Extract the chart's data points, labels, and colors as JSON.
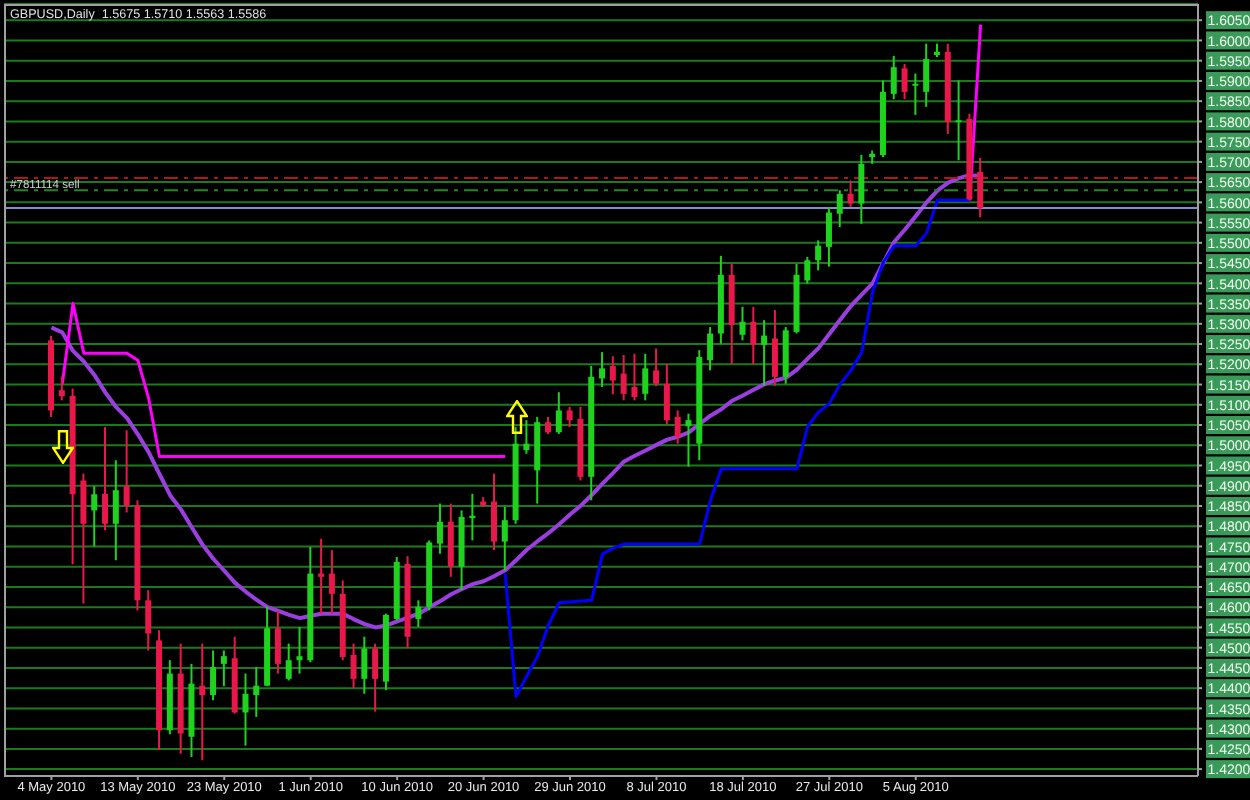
{
  "chart_data": {
    "type": "candlestick",
    "title": "GBPUSD,Daily  1.5675 1.5710 1.5563 1.5586",
    "categories": [
      "4 May 2010",
      null,
      null,
      null,
      null,
      null,
      null,
      null,
      "13 May 2010",
      null,
      null,
      null,
      null,
      null,
      null,
      null,
      "23 May 2010",
      null,
      null,
      null,
      null,
      null,
      null,
      null,
      "1 Jun 2010",
      null,
      null,
      null,
      null,
      null,
      null,
      null,
      "10 Jun 2010",
      null,
      null,
      null,
      null,
      null,
      null,
      null,
      "20 Jun 2010",
      null,
      null,
      null,
      null,
      null,
      null,
      null,
      "29 Jun 2010",
      null,
      null,
      null,
      null,
      null,
      null,
      null,
      "8 Jul 2010",
      null,
      null,
      null,
      null,
      null,
      null,
      null,
      "18 Jul 2010",
      null,
      null,
      null,
      null,
      null,
      null,
      null,
      "27 Jul 2010",
      null,
      null,
      null,
      null,
      null,
      null,
      null,
      "5 Aug 2010",
      null,
      null,
      null,
      null,
      null,
      null
    ],
    "ohlc": [
      [
        1.5259,
        1.527,
        1.507,
        1.5086
      ],
      [
        1.5136,
        1.517,
        1.5111,
        1.5121
      ],
      [
        1.5122,
        1.514,
        1.4706,
        1.4879
      ],
      [
        1.4913,
        1.493,
        1.4609,
        1.4806
      ],
      [
        1.4839,
        1.4899,
        1.475,
        1.4879
      ],
      [
        1.488,
        1.5045,
        1.479,
        1.4806
      ],
      [
        1.4806,
        1.4963,
        1.4716,
        1.4889
      ],
      [
        1.4899,
        1.5037,
        1.4834,
        1.4851
      ],
      [
        1.4851,
        1.4864,
        1.4592,
        1.4617
      ],
      [
        1.4617,
        1.4642,
        1.4493,
        1.4535
      ],
      [
        1.4518,
        1.4543,
        1.4247,
        1.4296
      ],
      [
        1.4296,
        1.4469,
        1.4286,
        1.4436
      ],
      [
        1.4436,
        1.451,
        1.4238,
        1.4288
      ],
      [
        1.428,
        1.446,
        1.423,
        1.4411
      ],
      [
        1.4406,
        1.451,
        1.4222,
        1.4383
      ],
      [
        1.4383,
        1.4493,
        1.437,
        1.4452
      ],
      [
        1.446,
        1.4493,
        1.4405,
        1.4479
      ],
      [
        1.4474,
        1.4527,
        1.4337,
        1.434
      ],
      [
        1.434,
        1.4436,
        1.4258,
        1.4386
      ],
      [
        1.4383,
        1.4452,
        1.4329,
        1.4406
      ],
      [
        1.4406,
        1.4602,
        1.4405,
        1.4548
      ],
      [
        1.4548,
        1.4592,
        1.4436,
        1.446
      ],
      [
        1.4423,
        1.451,
        1.4419,
        1.4469
      ],
      [
        1.4469,
        1.4551,
        1.4436,
        1.4479
      ],
      [
        1.4469,
        1.4749,
        1.4464,
        1.4683
      ],
      [
        1.4683,
        1.4769,
        1.4584,
        1.4675
      ],
      [
        1.4683,
        1.4741,
        1.4584,
        1.4633
      ],
      [
        1.4633,
        1.4666,
        1.4469,
        1.4477
      ],
      [
        1.4482,
        1.451,
        1.44,
        1.4423
      ],
      [
        1.4423,
        1.4527,
        1.4386,
        1.4498
      ],
      [
        1.4498,
        1.451,
        1.4342,
        1.4423
      ],
      [
        1.4416,
        1.4584,
        1.4395,
        1.4581
      ],
      [
        1.4571,
        1.4724,
        1.4568,
        1.4712
      ],
      [
        1.4707,
        1.4726,
        1.4498,
        1.4527
      ],
      [
        1.4571,
        1.4617,
        1.4551,
        1.4601
      ],
      [
        1.4601,
        1.4765,
        1.4592,
        1.476
      ],
      [
        1.4757,
        1.4856,
        1.4732,
        1.4811
      ],
      [
        1.4811,
        1.4856,
        1.4675,
        1.47
      ],
      [
        1.47,
        1.4839,
        1.4642,
        1.4823
      ],
      [
        1.482,
        1.488,
        1.4765,
        1.4826
      ],
      [
        1.4861,
        1.4872,
        1.4848,
        1.4851
      ],
      [
        1.4861,
        1.493,
        1.4741,
        1.4762
      ],
      [
        1.4762,
        1.4848,
        1.4691,
        1.4815
      ],
      [
        1.4815,
        1.5045,
        1.4806,
        1.5004
      ],
      [
        1.4988,
        1.5062,
        1.4979,
        1.5004
      ],
      [
        1.4938,
        1.507,
        1.4856,
        1.5057
      ],
      [
        1.5057,
        1.507,
        1.5028,
        1.5032
      ],
      [
        1.5032,
        1.5131,
        1.5028,
        1.5086
      ],
      [
        1.5086,
        1.5095,
        1.5045,
        1.5062
      ],
      [
        1.5065,
        1.5095,
        1.4913,
        1.4922
      ],
      [
        1.4922,
        1.5196,
        1.4864,
        1.5169
      ],
      [
        1.5165,
        1.523,
        1.5144,
        1.519
      ],
      [
        1.5196,
        1.522,
        1.5126,
        1.516
      ],
      [
        1.5177,
        1.5223,
        1.5111,
        1.5127
      ],
      [
        1.5144,
        1.5226,
        1.5111,
        1.5119
      ],
      [
        1.5127,
        1.5226,
        1.5111,
        1.519
      ],
      [
        1.5185,
        1.5239,
        1.5146,
        1.5152
      ],
      [
        1.5152,
        1.5201,
        1.5052,
        1.5062
      ],
      [
        1.507,
        1.5086,
        1.5004,
        1.5021
      ],
      [
        1.5047,
        1.5078,
        1.4947,
        1.5062
      ],
      [
        1.5004,
        1.5235,
        1.4963,
        1.5218
      ],
      [
        1.521,
        1.5292,
        1.5185,
        1.5276
      ],
      [
        1.5276,
        1.5468,
        1.5251,
        1.5421
      ],
      [
        1.5421,
        1.5448,
        1.5201,
        1.5297
      ],
      [
        1.5273,
        1.5342,
        1.5259,
        1.5305
      ],
      [
        1.5305,
        1.5342,
        1.5201,
        1.5248
      ],
      [
        1.5248,
        1.5309,
        1.5147,
        1.5271
      ],
      [
        1.5264,
        1.5334,
        1.5147,
        1.5169
      ],
      [
        1.5169,
        1.5292,
        1.5152,
        1.5284
      ],
      [
        1.528,
        1.5448,
        1.5276,
        1.5421
      ],
      [
        1.5407,
        1.5465,
        1.5399,
        1.5457
      ],
      [
        1.5457,
        1.5506,
        1.5432,
        1.5493
      ],
      [
        1.549,
        1.5589,
        1.5441,
        1.5575
      ],
      [
        1.5572,
        1.563,
        1.5539,
        1.5621
      ],
      [
        1.5621,
        1.5654,
        1.5589,
        1.5597
      ],
      [
        1.5597,
        1.5717,
        1.5547,
        1.5695
      ],
      [
        1.5712,
        1.5728,
        1.5695,
        1.572
      ],
      [
        1.5717,
        1.5901,
        1.5712,
        1.5873
      ],
      [
        1.5868,
        1.5962,
        1.5855,
        1.5934
      ],
      [
        1.5931,
        1.5942,
        1.5855,
        1.5873
      ],
      [
        1.589,
        1.5918,
        1.5816,
        1.5893
      ],
      [
        1.5873,
        1.5992,
        1.5836,
        1.5954
      ],
      [
        1.5964,
        1.5992,
        1.5959,
        1.5972
      ],
      [
        1.5972,
        1.5992,
        1.5769,
        1.5798
      ],
      [
        1.5799,
        1.5901,
        1.5704,
        1.5803
      ],
      [
        1.5806,
        1.5819,
        1.5605,
        1.5608
      ],
      [
        1.5675,
        1.571,
        1.5563,
        1.5586
      ]
    ],
    "colors": [
      "#e8184a",
      "#e8184a",
      "#e8184a",
      "#e8184a",
      "#1ed21e",
      "#e8184a",
      "#1ed21e",
      "#e8184a",
      "#e8184a",
      "#e8184a",
      "#e8184a",
      "#1ed21e",
      "#e8184a",
      "#1ed21e",
      "#e8184a",
      "#1ed21e",
      "#1ed21e",
      "#e8184a",
      "#1ed21e",
      "#1ed21e",
      "#1ed21e",
      "#e8184a",
      "#1ed21e",
      "#1ed21e",
      "#1ed21e",
      "#e8184a",
      "#e8184a",
      "#e8184a",
      "#e8184a",
      "#1ed21e",
      "#e8184a",
      "#1ed21e",
      "#1ed21e",
      "#e8184a",
      "#1ed21e",
      "#1ed21e",
      "#1ed21e",
      "#e8184a",
      "#1ed21e",
      "#1ed21e",
      "#e8184a",
      "#e8184a",
      "#1ed21e",
      "#1ed21e",
      "#1ed21e",
      "#1ed21e",
      "#e8184a",
      "#1ed21e",
      "#e8184a",
      "#e8184a",
      "#1ed21e",
      "#1ed21e",
      "#e8184a",
      "#e8184a",
      "#e8184a",
      "#1ed21e",
      "#e8184a",
      "#e8184a",
      "#e8184a",
      "#1ed21e",
      "#1ed21e",
      "#1ed21e",
      "#1ed21e",
      "#e8184a",
      "#1ed21e",
      "#e8184a",
      "#1ed21e",
      "#e8184a",
      "#1ed21e",
      "#1ed21e",
      "#1ed21e",
      "#1ed21e",
      "#1ed21e",
      "#1ed21e",
      "#e8184a",
      "#1ed21e",
      "#1ed21e",
      "#1ed21e",
      "#1ed21e",
      "#e8184a",
      "#1ed21e",
      "#1ed21e",
      "#1ed21e",
      "#e8184a",
      "#1ed21e",
      "#e8184a",
      "#e8184a"
    ],
    "series": [
      {
        "type": "line",
        "color": "#9a3ee0",
        "values": [
          1.5291,
          1.5279,
          1.5233,
          1.5207,
          1.5173,
          1.513,
          1.5094,
          1.5067,
          1.5027,
          1.4983,
          1.4929,
          1.4876,
          1.4841,
          1.4797,
          1.4754,
          1.4719,
          1.469,
          1.466,
          1.4638,
          1.4618,
          1.46,
          1.4591,
          1.4581,
          1.4573,
          1.4579,
          1.4584,
          1.4584,
          1.4584,
          1.457,
          1.4558,
          1.455,
          1.4555,
          1.4565,
          1.4574,
          1.4584,
          1.46,
          1.4615,
          1.4632,
          1.4645,
          1.4657,
          1.4664,
          1.4677,
          1.4691,
          1.4716,
          1.4742,
          1.4763,
          1.4783,
          1.4805,
          1.4829,
          1.4851,
          1.4877,
          1.4905,
          1.4932,
          1.496,
          1.4974,
          1.4987,
          1.5001,
          1.5014,
          1.5021,
          1.5032,
          1.5053,
          1.5073,
          1.5089,
          1.511,
          1.5123,
          1.5137,
          1.5151,
          1.516,
          1.5167,
          1.5187,
          1.5214,
          1.524,
          1.5275,
          1.531,
          1.5344,
          1.5372,
          1.54,
          1.5451,
          1.5502,
          1.5533,
          1.5566,
          1.56,
          1.5629,
          1.5649,
          1.566,
          1.5667,
          1.5665
        ]
      },
      {
        "type": "line",
        "color": "#ff00ff",
        "values": [
          null,
          1.515,
          1.535,
          1.5227,
          1.5227,
          1.5227,
          1.5227,
          1.5227,
          1.521,
          1.5116,
          1.4972,
          1.4972,
          1.4972,
          1.4972,
          1.4972,
          1.4972,
          1.4972,
          1.4972,
          1.4972,
          1.4972,
          1.4972,
          1.4972,
          1.4972,
          1.4972,
          1.4972,
          1.4972,
          1.4972,
          1.4972,
          1.4972,
          1.4972,
          1.4972,
          1.4972,
          1.4972,
          1.4972,
          1.4972,
          1.4972,
          1.4972,
          1.4972,
          1.4972,
          1.4972,
          1.4972,
          1.4972,
          1.4972,
          null,
          null,
          null,
          null,
          null,
          null,
          null,
          null,
          null,
          null,
          null,
          null,
          null,
          null,
          null,
          null,
          null,
          null,
          null,
          null,
          null,
          null,
          null,
          null,
          null,
          null,
          null,
          null,
          null,
          null,
          null,
          null,
          null,
          null,
          null,
          null,
          null,
          null,
          null,
          null,
          null,
          null,
          1.5605,
          1.6039
        ]
      },
      {
        "type": "line",
        "color": "#0000ff",
        "values": [
          null,
          null,
          null,
          null,
          null,
          null,
          null,
          null,
          null,
          null,
          null,
          null,
          null,
          null,
          null,
          null,
          null,
          null,
          null,
          null,
          null,
          null,
          null,
          null,
          null,
          null,
          null,
          null,
          null,
          null,
          null,
          null,
          null,
          null,
          null,
          null,
          null,
          null,
          null,
          null,
          null,
          null,
          1.4683,
          1.4379,
          1.443,
          1.4479,
          1.4556,
          1.4611,
          1.4613,
          1.4615,
          1.4617,
          1.4731,
          1.4746,
          1.4756,
          1.4756,
          1.4756,
          1.4756,
          1.4756,
          1.4756,
          1.4756,
          1.4757,
          1.4864,
          1.4942,
          1.4942,
          1.4942,
          1.4942,
          1.4942,
          1.4942,
          1.4942,
          1.4942,
          1.5047,
          1.5082,
          1.5103,
          1.5151,
          1.5185,
          1.523,
          1.5378,
          1.5452,
          1.5493,
          1.5493,
          1.5493,
          1.5524,
          1.5605,
          1.5605,
          1.5605,
          1.5605,
          null
        ]
      }
    ],
    "ylim": [
      1.4183,
      1.609
    ],
    "yticks": [
      {
        "value": 1.42,
        "label": "1.4200"
      },
      {
        "value": 1.425,
        "label": "1.4250"
      },
      {
        "value": 1.43,
        "label": "1.4300"
      },
      {
        "value": 1.435,
        "label": "1.4350"
      },
      {
        "value": 1.44,
        "label": "1.4400"
      },
      {
        "value": 1.445,
        "label": "1.4450"
      },
      {
        "value": 1.45,
        "label": "1.4500"
      },
      {
        "value": 1.455,
        "label": "1.4550"
      },
      {
        "value": 1.46,
        "label": "1.4600"
      },
      {
        "value": 1.465,
        "label": "1.4650"
      },
      {
        "value": 1.47,
        "label": "1.4700"
      },
      {
        "value": 1.475,
        "label": "1.4750"
      },
      {
        "value": 1.48,
        "label": "1.4800"
      },
      {
        "value": 1.485,
        "label": "1.4850"
      },
      {
        "value": 1.49,
        "label": "1.4900"
      },
      {
        "value": 1.495,
        "label": "1.4950"
      },
      {
        "value": 1.5,
        "label": "1.5000"
      },
      {
        "value": 1.505,
        "label": "1.5050"
      },
      {
        "value": 1.51,
        "label": "1.5100"
      },
      {
        "value": 1.515,
        "label": "1.5150"
      },
      {
        "value": 1.52,
        "label": "1.5200"
      },
      {
        "value": 1.525,
        "label": "1.5250"
      },
      {
        "value": 1.53,
        "label": "1.5300"
      },
      {
        "value": 1.535,
        "label": "1.5350"
      },
      {
        "value": 1.54,
        "label": "1.5400"
      },
      {
        "value": 1.545,
        "label": "1.5450"
      },
      {
        "value": 1.55,
        "label": "1.5500"
      },
      {
        "value": 1.555,
        "label": "1.5550"
      },
      {
        "value": 1.56,
        "label": "1.5600"
      },
      {
        "value": 1.565,
        "label": "1.5650"
      },
      {
        "value": 1.57,
        "label": "1.5700"
      },
      {
        "value": 1.575,
        "label": "1.5750"
      },
      {
        "value": 1.58,
        "label": "1.5800"
      },
      {
        "value": 1.585,
        "label": "1.5850"
      },
      {
        "value": 1.59,
        "label": "1.5900"
      },
      {
        "value": 1.595,
        "label": "1.5950"
      },
      {
        "value": 1.6,
        "label": "1.6000"
      },
      {
        "value": 1.605,
        "label": "1.6050"
      }
    ],
    "grid": "y",
    "ref_lines": [
      {
        "axis": "y",
        "value": 1.566,
        "color": "#b01818",
        "line_style": "dashed"
      },
      {
        "axis": "y",
        "value": 1.563,
        "label": "#7811114 sell",
        "color": "#1a8a1a",
        "line_style": "dashed"
      },
      {
        "axis": "y",
        "value": 1.5586,
        "color": "#8a8ad0",
        "line_style": "solid"
      }
    ]
  }
}
